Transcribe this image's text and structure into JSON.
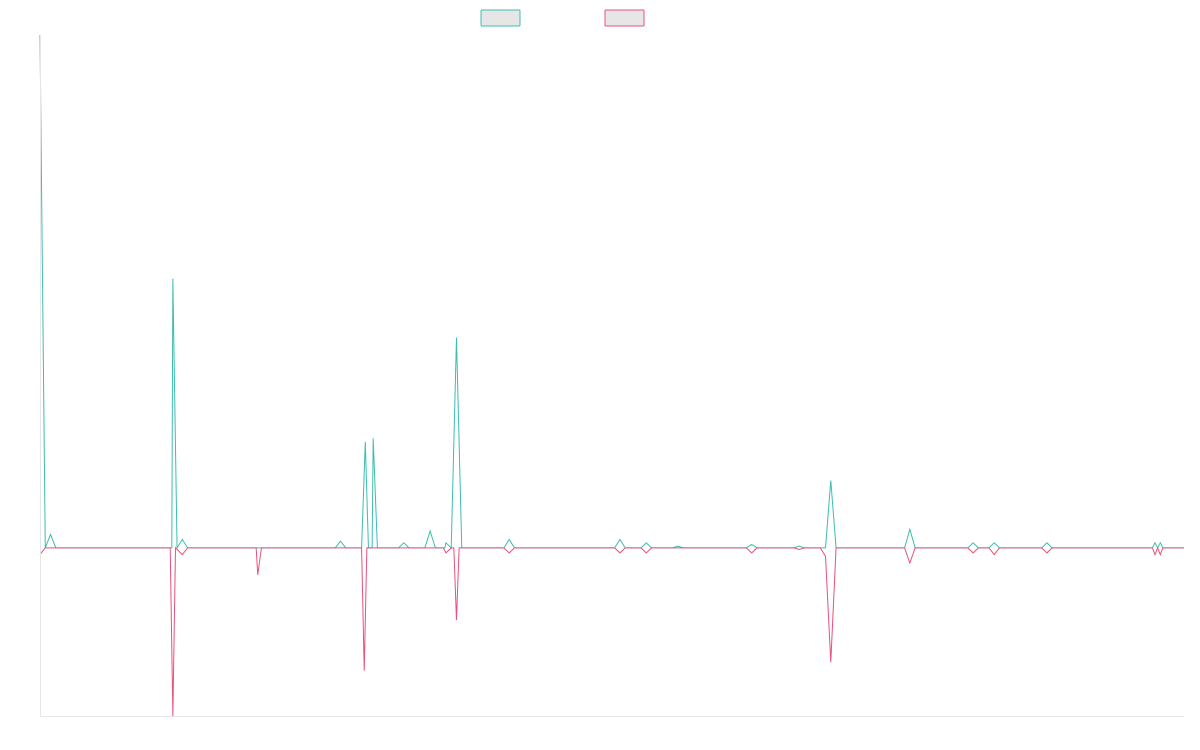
{
  "chart_data": {
    "type": "line",
    "title": "",
    "xlabel": "",
    "ylabel": "",
    "grid": false,
    "legend_position": "top-center",
    "x": [
      0,
      1,
      2,
      3,
      4,
      5,
      6,
      7,
      8,
      9,
      10,
      11,
      12,
      13,
      14,
      15,
      16,
      17,
      18,
      19,
      20,
      21,
      22,
      23,
      24,
      25,
      26,
      27,
      28,
      29,
      30,
      31,
      32,
      33,
      34,
      35,
      36,
      37,
      38,
      39,
      40,
      41,
      42,
      43,
      44,
      45,
      46,
      47,
      48,
      49,
      50,
      51,
      52,
      53,
      54,
      55,
      56,
      57,
      58,
      59,
      60,
      61,
      62,
      63,
      64,
      65,
      66,
      67,
      68,
      69,
      70,
      71,
      72,
      73,
      74,
      75,
      76,
      77,
      78,
      79,
      80,
      81,
      82,
      83,
      84,
      85,
      86,
      87,
      88,
      89,
      90,
      91,
      92,
      93,
      94,
      95,
      96,
      97,
      98,
      99,
      100,
      101,
      102,
      103,
      104,
      105,
      106,
      107,
      108,
      109,
      110,
      111,
      112,
      113,
      114,
      115,
      116,
      117,
      118,
      119,
      120,
      121,
      122,
      123,
      124,
      125,
      126,
      127,
      128,
      129,
      130,
      131,
      132,
      133,
      134,
      135,
      136,
      137,
      138,
      139,
      140,
      141,
      142,
      143,
      144,
      145,
      146,
      147,
      148,
      149,
      150,
      151,
      152,
      153,
      154,
      155,
      156,
      157,
      158,
      159,
      160,
      161,
      162,
      163,
      164,
      165,
      166,
      167,
      168,
      169,
      170,
      171,
      172,
      173,
      174,
      175,
      176,
      177,
      178,
      179,
      180,
      181,
      182,
      183,
      184,
      185,
      186,
      187,
      188,
      189,
      190,
      191,
      192,
      193,
      194,
      195,
      196,
      197,
      198,
      199,
      200,
      201,
      202,
      203,
      204,
      205,
      206,
      207,
      208,
      209,
      210,
      211,
      212,
      213,
      214,
      215,
      216,
      217
    ],
    "xlim": [
      0,
      217
    ],
    "ylim": [
      -100,
      305
    ],
    "series": [
      {
        "color": "#3dbdb1",
        "points": [
          [
            0,
            305
          ],
          [
            1,
            0
          ],
          [
            2,
            8
          ],
          [
            3,
            0
          ],
          [
            25,
            0
          ],
          [
            25.2,
            160
          ],
          [
            26,
            0
          ],
          [
            27,
            5
          ],
          [
            28,
            0
          ],
          [
            56,
            0
          ],
          [
            57,
            4
          ],
          [
            58,
            0
          ],
          [
            61,
            0
          ],
          [
            61.7,
            63
          ],
          [
            62.3,
            0
          ],
          [
            63,
            0
          ],
          [
            63.2,
            65
          ],
          [
            64,
            0
          ],
          [
            68,
            0
          ],
          [
            69,
            3
          ],
          [
            70,
            0
          ],
          [
            73,
            0
          ],
          [
            74,
            10
          ],
          [
            75,
            0
          ],
          [
            76.8,
            0
          ],
          [
            77,
            3
          ],
          [
            78,
            0
          ],
          [
            79,
            125
          ],
          [
            80,
            0
          ],
          [
            88,
            0
          ],
          [
            89,
            5
          ],
          [
            90,
            0
          ],
          [
            109,
            0
          ],
          [
            110,
            5
          ],
          [
            111,
            0
          ],
          [
            114,
            0
          ],
          [
            115,
            3
          ],
          [
            116,
            0
          ],
          [
            120,
            0
          ],
          [
            121,
            1
          ],
          [
            122,
            0
          ],
          [
            134,
            0
          ],
          [
            135,
            2
          ],
          [
            136,
            0
          ],
          [
            143,
            0
          ],
          [
            144,
            1
          ],
          [
            145,
            0
          ],
          [
            149,
            0
          ],
          [
            150,
            40
          ],
          [
            151,
            0
          ],
          [
            164,
            0
          ],
          [
            165,
            11
          ],
          [
            166,
            0
          ],
          [
            176,
            0
          ],
          [
            177,
            3
          ],
          [
            178,
            0
          ],
          [
            180,
            0
          ],
          [
            181,
            3
          ],
          [
            182,
            0
          ],
          [
            190,
            0
          ],
          [
            191,
            3
          ],
          [
            192,
            0
          ],
          [
            211,
            0
          ],
          [
            211.5,
            3
          ],
          [
            212,
            0
          ],
          [
            212.5,
            3
          ],
          [
            213,
            0
          ],
          [
            217,
            0
          ]
        ]
      },
      {
        "color": "#e8517a",
        "points": [
          [
            0,
            -4
          ],
          [
            1,
            0
          ],
          [
            24.7,
            0
          ],
          [
            25.2,
            -100
          ],
          [
            25.7,
            0
          ],
          [
            27,
            -4
          ],
          [
            28,
            0
          ],
          [
            41,
            0
          ],
          [
            41.3,
            -16
          ],
          [
            42,
            0
          ],
          [
            61,
            0
          ],
          [
            61.5,
            -73
          ],
          [
            62,
            0
          ],
          [
            76.5,
            0
          ],
          [
            77,
            -3
          ],
          [
            78,
            0
          ],
          [
            78.5,
            0
          ],
          [
            79,
            -43
          ],
          [
            79.5,
            0
          ],
          [
            88,
            0
          ],
          [
            89,
            -3
          ],
          [
            90,
            0
          ],
          [
            109,
            0
          ],
          [
            110,
            -3
          ],
          [
            111,
            0
          ],
          [
            114,
            0
          ],
          [
            115,
            -3
          ],
          [
            116,
            0
          ],
          [
            134,
            0
          ],
          [
            135,
            -3
          ],
          [
            136,
            0
          ],
          [
            143,
            0
          ],
          [
            144,
            -1
          ],
          [
            145,
            0
          ],
          [
            148,
            0
          ],
          [
            149,
            -5
          ],
          [
            150,
            -68
          ],
          [
            151,
            0
          ],
          [
            164,
            0
          ],
          [
            165,
            -9
          ],
          [
            166,
            0
          ],
          [
            176,
            0
          ],
          [
            177,
            -3
          ],
          [
            178,
            0
          ],
          [
            180,
            0
          ],
          [
            181,
            -4
          ],
          [
            182,
            0
          ],
          [
            190,
            0
          ],
          [
            191,
            -3
          ],
          [
            192,
            0
          ],
          [
            211,
            0
          ],
          [
            211.5,
            -4
          ],
          [
            212,
            0
          ],
          [
            212.5,
            -4
          ],
          [
            213,
            0
          ],
          [
            217,
            0
          ]
        ]
      }
    ]
  }
}
